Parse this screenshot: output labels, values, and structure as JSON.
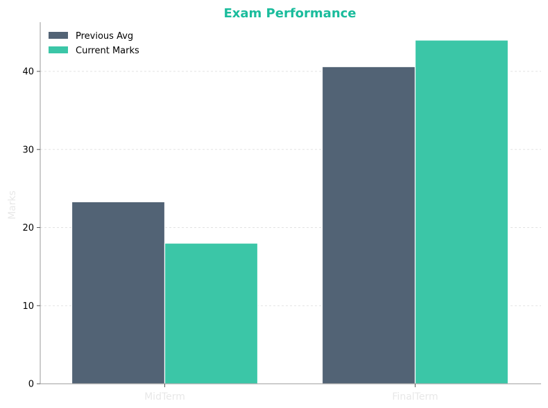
{
  "chart_data": {
    "type": "bar",
    "title": "Exam Performance",
    "xlabel": "",
    "ylabel": "Marks",
    "categories": [
      "MidTerm",
      "FinalTerm"
    ],
    "series": [
      {
        "name": "Previous Avg",
        "values": [
          23.3,
          40.6
        ],
        "color": "#526375"
      },
      {
        "name": "Current Marks",
        "values": [
          18.0,
          44.0
        ],
        "color": "#3bc6a7"
      }
    ],
    "ylim": [
      0,
      46.3
    ],
    "yticks": [
      0,
      10,
      20,
      30,
      40
    ],
    "grid": true,
    "legend_position": "top-left",
    "title_color": "#1abc9c"
  }
}
